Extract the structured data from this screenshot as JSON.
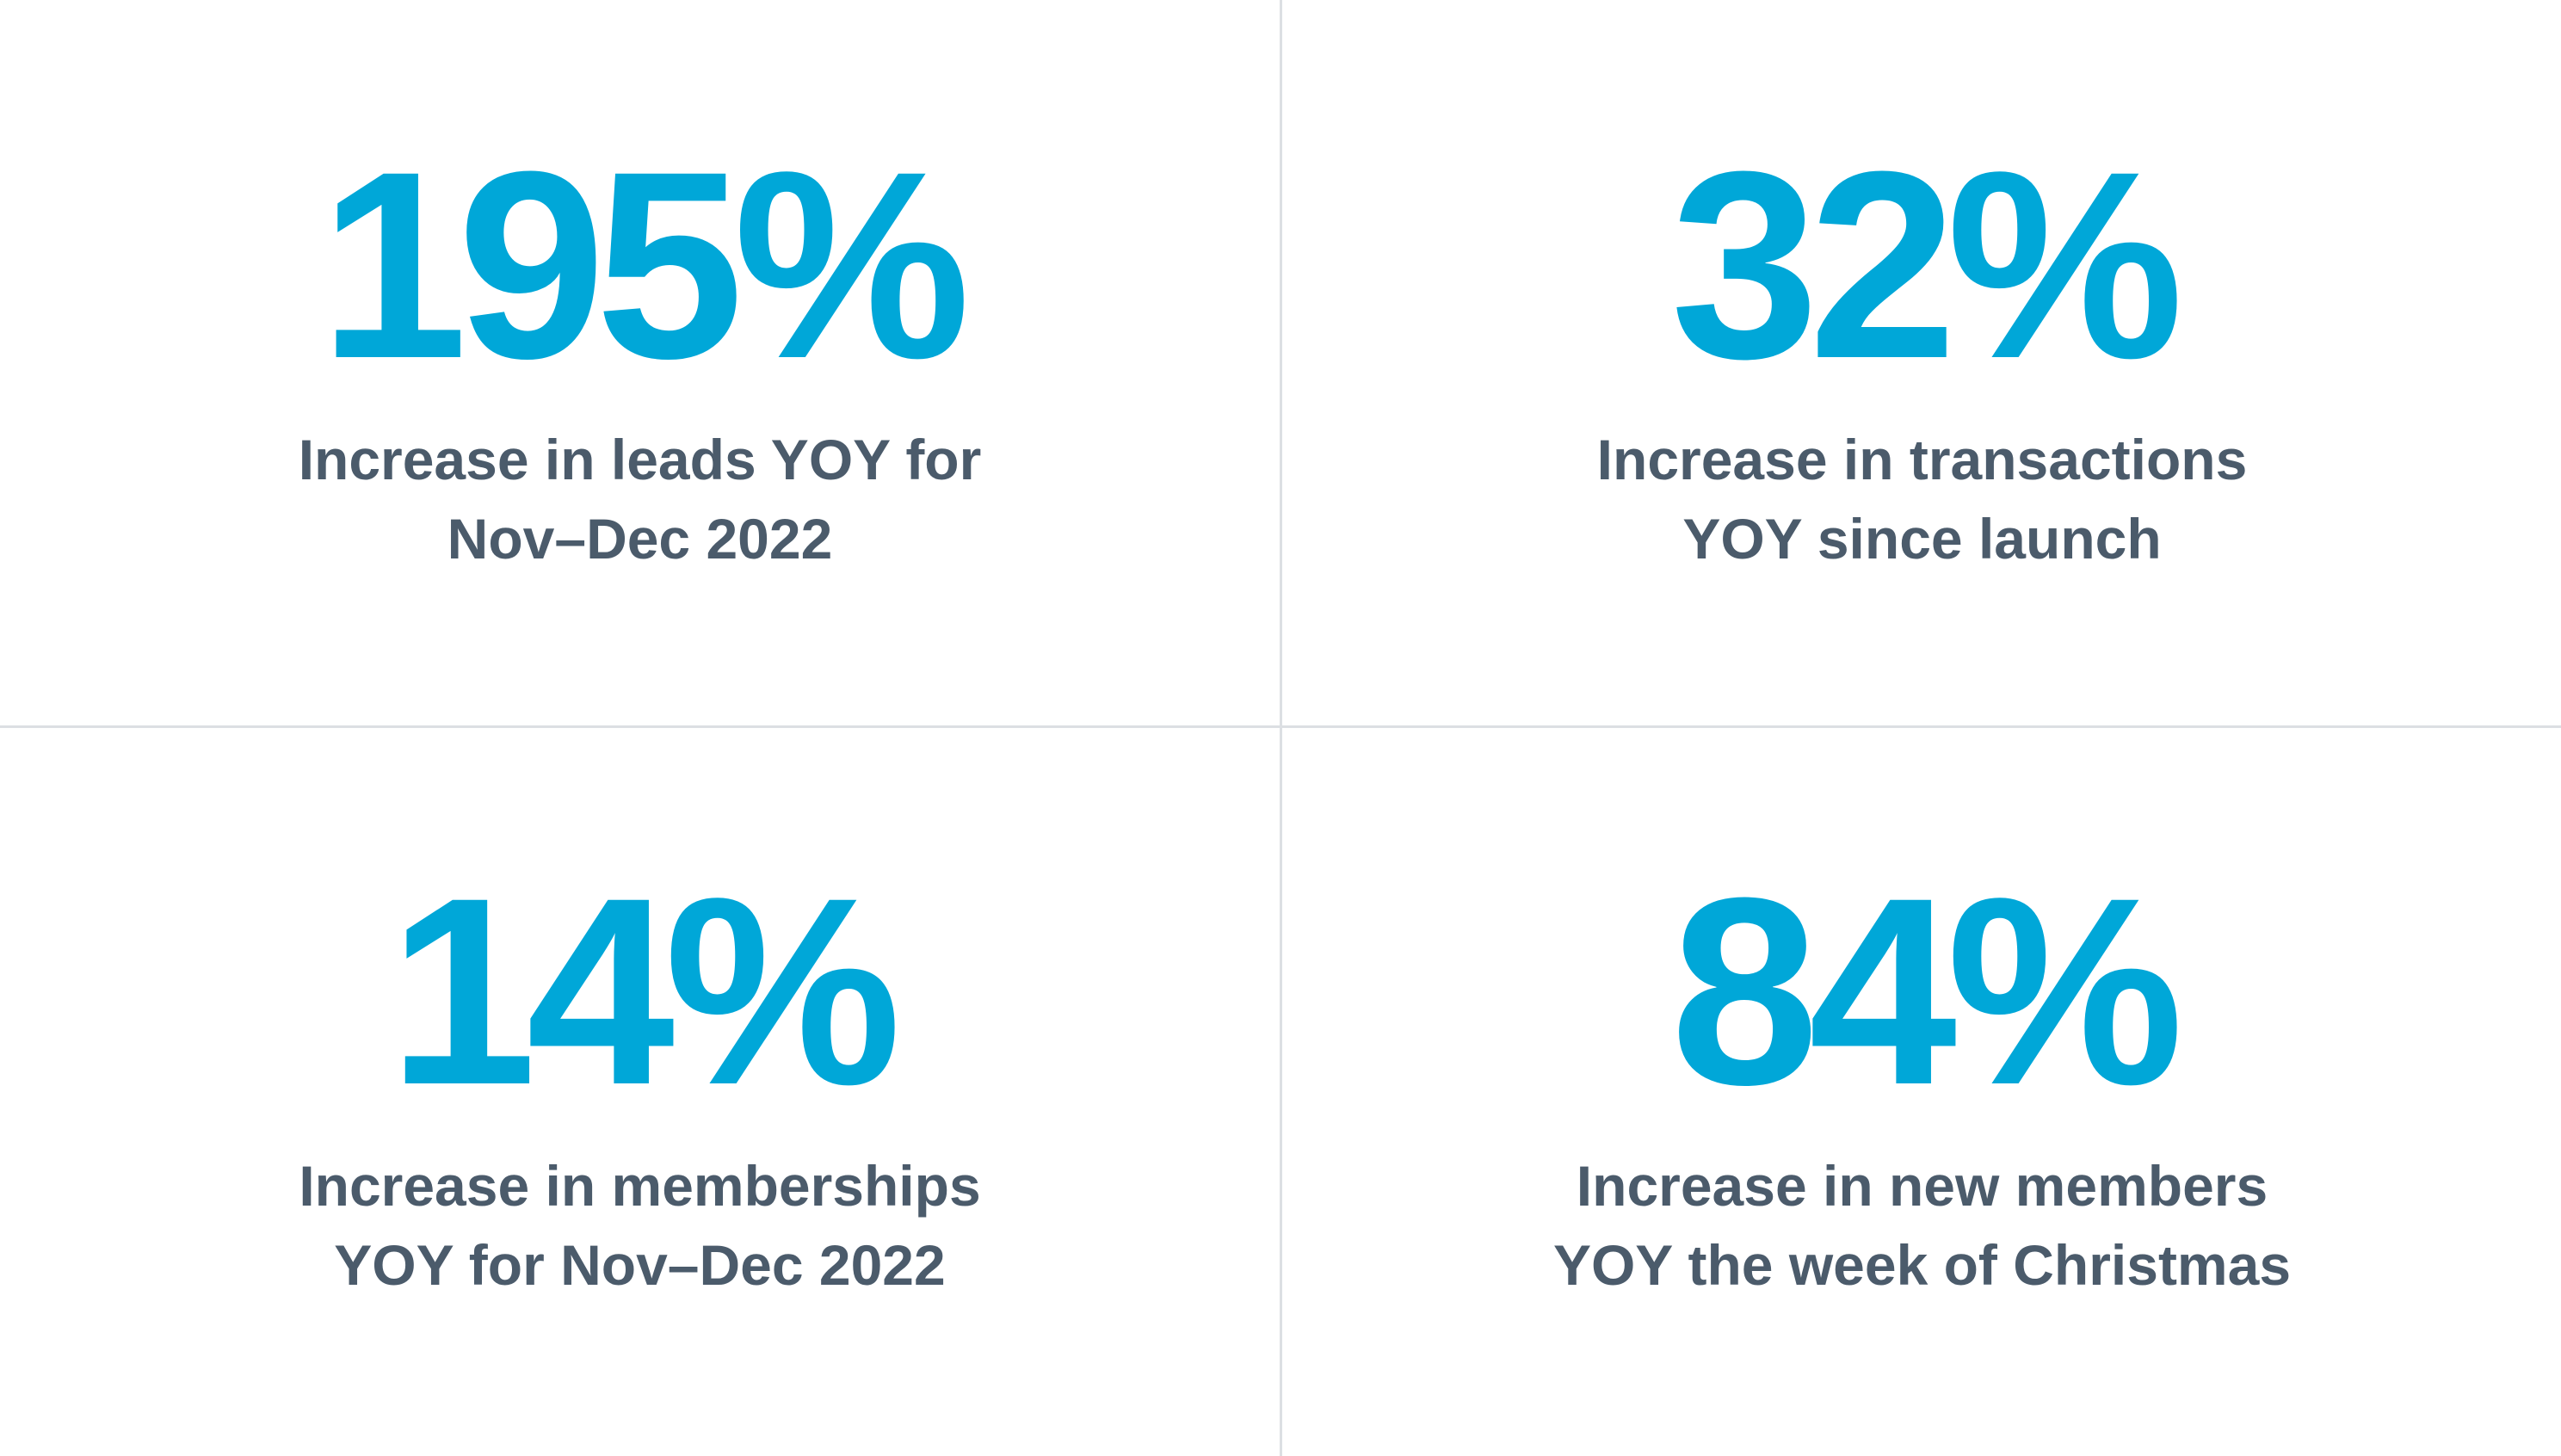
{
  "stats": [
    {
      "value": "195%",
      "caption_lines": [
        "Increase in leads YOY for",
        "Nov–Dec 2022"
      ]
    },
    {
      "value": "32%",
      "caption_lines": [
        "Increase in transactions",
        "YOY since launch"
      ]
    },
    {
      "value": "14%",
      "caption_lines": [
        "Increase in memberships",
        "YOY for Nov–Dec 2022"
      ]
    },
    {
      "value": "84%",
      "caption_lines": [
        "Increase in new members",
        "YOY the week of Christmas"
      ]
    }
  ],
  "colors": {
    "accent": "#00a7d8",
    "caption": "#4b5b6b",
    "divider": "#dcdfe3",
    "background": "#ffffff"
  }
}
